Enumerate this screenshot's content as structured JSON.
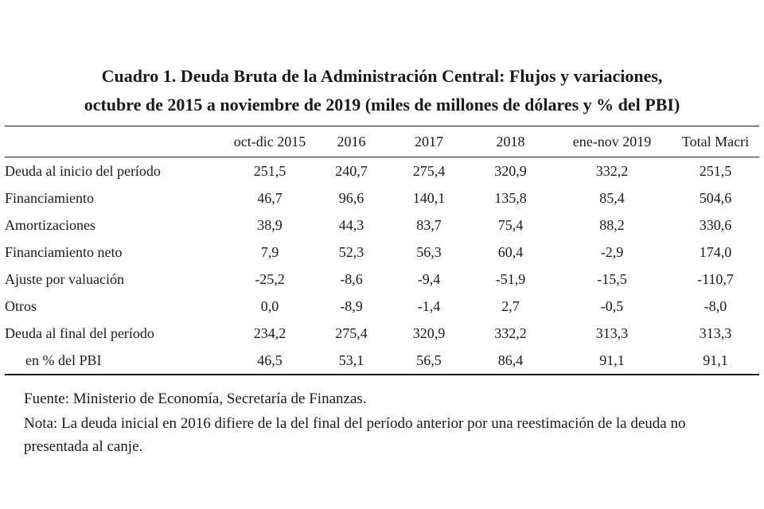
{
  "title": {
    "line1": "Cuadro 1. Deuda Bruta de la Administración Central: Flujos y variaciones,",
    "line2": "octubre de 2015 a noviembre de 2019 (miles de millones de dólares y % del PBI)"
  },
  "table": {
    "columns": [
      "",
      "oct-dic 2015",
      "2016",
      "2017",
      "2018",
      "ene-nov 2019",
      "Total Macri"
    ],
    "rows": [
      {
        "label": "Deuda al inicio del período",
        "indent": false,
        "values": [
          "251,5",
          "240,7",
          "275,4",
          "320,9",
          "332,2",
          "251,5"
        ]
      },
      {
        "label": "Financiamiento",
        "indent": false,
        "values": [
          "46,7",
          "96,6",
          "140,1",
          "135,8",
          "85,4",
          "504,6"
        ]
      },
      {
        "label": "Amortizaciones",
        "indent": false,
        "values": [
          "38,9",
          "44,3",
          "83,7",
          "75,4",
          "88,2",
          "330,6"
        ]
      },
      {
        "label": "Financiamiento neto",
        "indent": false,
        "values": [
          "7,9",
          "52,3",
          "56,3",
          "60,4",
          "-2,9",
          "174,0"
        ]
      },
      {
        "label": "Ajuste por valuación",
        "indent": false,
        "values": [
          "-25,2",
          "-8,6",
          "-9,4",
          "-51,9",
          "-15,5",
          "-110,7"
        ]
      },
      {
        "label": "Otros",
        "indent": false,
        "values": [
          "0,0",
          "-8,9",
          "-1,4",
          "2,7",
          "-0,5",
          "-8,0"
        ]
      },
      {
        "label": "Deuda al final del período",
        "indent": false,
        "values": [
          "234,2",
          "275,4",
          "320,9",
          "332,2",
          "313,3",
          "313,3"
        ]
      },
      {
        "label": "en % del PBI",
        "indent": true,
        "values": [
          "46,5",
          "53,1",
          "56,5",
          "86,4",
          "91,1",
          "91,1"
        ]
      }
    ]
  },
  "notes": {
    "fuente": "Fuente: Ministerio de Economía, Secretaría de Finanzas.",
    "nota": "Nota: La deuda inicial en 2016 difiere de la del final del período anterior por una reestimación de la deuda no presentada al canje."
  }
}
